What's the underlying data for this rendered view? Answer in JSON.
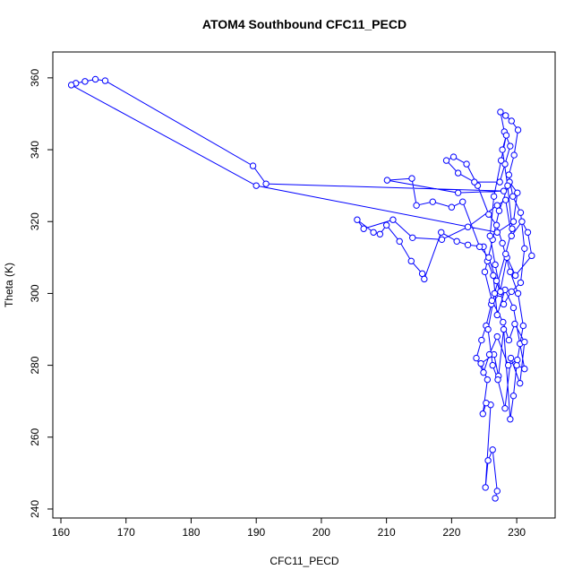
{
  "chart_data": {
    "type": "line",
    "title": "ATOM4 Southbound CFC11_PECD",
    "x_label": "CFC11_PECD",
    "y_label": "Theta (K)",
    "color": "#0000ff",
    "markers": true,
    "xlim": [
      158.76,
      235.9
    ],
    "ylim": [
      237.5,
      367.2
    ],
    "xticks": [
      160,
      170,
      180,
      190,
      200,
      210,
      220,
      230
    ],
    "yticks": [
      240,
      260,
      280,
      300,
      320,
      340,
      360
    ],
    "x": [
      226.7,
      227,
      226.3,
      225.6,
      225.2,
      226,
      225.3,
      224.8,
      225.5,
      224.5,
      226.5,
      227.2,
      228,
      229,
      229.5,
      230,
      231.2,
      230.5,
      229.5,
      228.2,
      227,
      226.4,
      225.5,
      224.9,
      222.5,
      220.8,
      218.4,
      215.8,
      215.5,
      213.8,
      212,
      210,
      209,
      208,
      205.5,
      206.5,
      211,
      214,
      218.5,
      222.5,
      227,
      228.3,
      229.2,
      230.8,
      231.7,
      232.3,
      229.8,
      228.5,
      227.4,
      226.1,
      225.3,
      224.6,
      223.8,
      224.9,
      225.8,
      227,
      228.7,
      230.1,
      231,
      230.2,
      229,
      227.8,
      226.9,
      225.7,
      224,
      222.3,
      220.3,
      219.2,
      221,
      223.5,
      227.4,
      228.2,
      229,
      228.1,
      227.5,
      228.3,
      229.2,
      230.2,
      229.6,
      228.8,
      229.4,
      230.6,
      231.2,
      230.6,
      229.2,
      228,
      226.9,
      225.7,
      224.3,
      221.7,
      220,
      217.1,
      214.6,
      213.9,
      210.1,
      221,
      228,
      191.5,
      189.5,
      166.8,
      165.3,
      163.7,
      162.3,
      161.6,
      190,
      227,
      229.5,
      230.1,
      228.9,
      227.3,
      226.3,
      225.1,
      226.2,
      227.9,
      228.8,
      229.7,
      231.2,
      230.5,
      229.1,
      228.2,
      227.1,
      226.3,
      225.6,
      226.6,
      228.3,
      229.3,
      228.6,
      227.8,
      228.4,
      227.6,
      226.5,
      225.9,
      226.7,
      227.5
    ],
    "values": [
      243,
      245,
      256.5,
      253.5,
      246,
      269,
      269.5,
      266.5,
      276,
      280.5,
      283,
      277,
      290,
      265,
      271.5,
      280,
      279,
      286,
      296,
      301,
      294,
      305,
      309,
      313,
      313.5,
      314.5,
      317,
      304,
      305.5,
      309,
      314.5,
      319,
      316.5,
      317,
      320.5,
      318,
      320.5,
      315.5,
      315,
      318.5,
      324.5,
      326,
      316,
      320,
      317,
      310.5,
      305,
      310,
      300,
      297,
      291,
      287,
      282,
      278,
      283,
      288,
      280,
      281.5,
      291,
      300,
      306,
      314,
      319,
      322,
      330,
      336,
      338,
      337,
      333.5,
      331,
      331,
      336,
      341,
      345,
      350.5,
      349.5,
      348,
      345.5,
      338.5,
      333,
      327,
      322.5,
      312.5,
      303,
      300.5,
      297,
      303.5,
      310,
      313,
      325.5,
      324,
      325.5,
      324.5,
      332,
      331.5,
      328,
      328.5,
      330.5,
      335.5,
      359.2,
      359.6,
      359,
      358.5,
      358,
      330,
      317,
      320,
      328,
      331,
      323,
      315,
      306,
      298,
      292,
      287,
      291.5,
      286.5,
      275,
      282,
      268,
      276,
      280,
      290,
      300,
      311,
      318,
      330,
      340,
      344,
      337,
      327,
      316,
      308,
      300.5
    ]
  }
}
